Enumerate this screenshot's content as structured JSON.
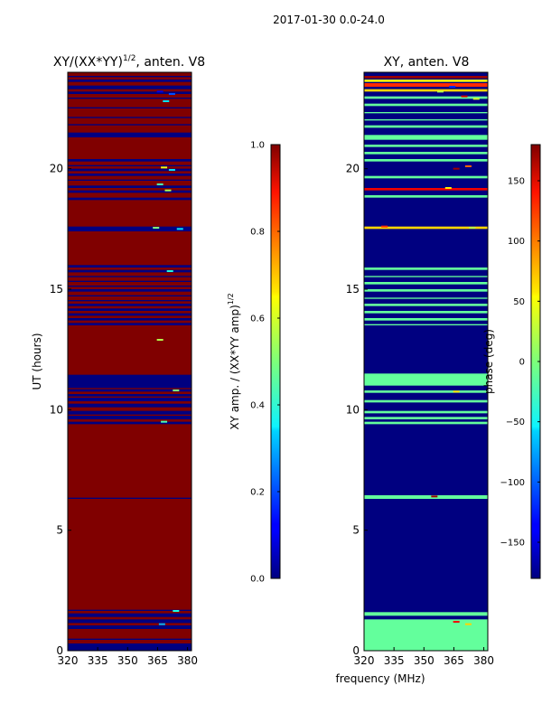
{
  "figure_title": "2017-01-30 0.0-24.0",
  "colors": {
    "dark_red": "#800000",
    "navy": "#00007f",
    "light_green": "#7dff7a",
    "cyan": "#00d4ff",
    "yellow": "#ffff00",
    "orange": "#ff8c00",
    "blue": "#0040ff"
  },
  "chart_data": [
    {
      "type": "heatmap",
      "title_main": "XY/(XX*YY)",
      "title_exp": "1/2",
      "title_tail": ", anten. V8",
      "ylabel": "UT (hours)",
      "xlabel": "",
      "xlim": [
        320,
        382
      ],
      "ylim": [
        0,
        24
      ],
      "xticks": [
        320,
        335,
        350,
        365,
        380
      ],
      "yticks": [
        0,
        5,
        10,
        15,
        20
      ],
      "background_value": 1.0,
      "bands": [
        {
          "y0": 0.0,
          "y1": 0.3,
          "v": 0.0
        },
        {
          "y0": 0.45,
          "y1": 0.5,
          "v": 0.0
        },
        {
          "y0": 0.9,
          "y1": 1.05,
          "v": 0.0
        },
        {
          "y0": 1.15,
          "y1": 1.3,
          "v": 0.0
        },
        {
          "y0": 1.4,
          "y1": 1.55,
          "v": 0.0
        },
        {
          "y0": 1.65,
          "y1": 1.7,
          "v": 0.0
        },
        {
          "y0": 6.3,
          "y1": 6.35,
          "v": 0.0
        },
        {
          "y0": 9.4,
          "y1": 9.5,
          "v": 0.0
        },
        {
          "y0": 9.6,
          "y1": 9.75,
          "v": 0.0
        },
        {
          "y0": 9.8,
          "y1": 9.95,
          "v": 0.0
        },
        {
          "y0": 10.1,
          "y1": 10.25,
          "v": 0.0
        },
        {
          "y0": 10.35,
          "y1": 10.5,
          "v": 0.0
        },
        {
          "y0": 10.55,
          "y1": 10.65,
          "v": 0.0
        },
        {
          "y0": 10.75,
          "y1": 10.85,
          "v": 0.0
        },
        {
          "y0": 10.9,
          "y1": 11.45,
          "v": 0.0
        },
        {
          "y0": 13.5,
          "y1": 13.6,
          "v": 0.0
        },
        {
          "y0": 13.7,
          "y1": 13.8,
          "v": 0.0
        },
        {
          "y0": 13.9,
          "y1": 14.0,
          "v": 0.0
        },
        {
          "y0": 14.1,
          "y1": 14.2,
          "v": 0.0
        },
        {
          "y0": 14.3,
          "y1": 14.4,
          "v": 0.0
        },
        {
          "y0": 14.5,
          "y1": 14.55,
          "v": 0.0
        },
        {
          "y0": 14.7,
          "y1": 14.75,
          "v": 0.0
        },
        {
          "y0": 14.9,
          "y1": 15.0,
          "v": 0.0
        },
        {
          "y0": 15.1,
          "y1": 15.15,
          "v": 0.0
        },
        {
          "y0": 15.3,
          "y1": 15.35,
          "v": 0.0
        },
        {
          "y0": 15.5,
          "y1": 15.55,
          "v": 0.0
        },
        {
          "y0": 15.7,
          "y1": 15.8,
          "v": 0.0
        },
        {
          "y0": 15.9,
          "y1": 16.0,
          "v": 0.0
        },
        {
          "y0": 17.4,
          "y1": 17.6,
          "v": 0.0
        },
        {
          "y0": 18.7,
          "y1": 18.8,
          "v": 0.0
        },
        {
          "y0": 19.0,
          "y1": 19.1,
          "v": 0.0
        },
        {
          "y0": 19.2,
          "y1": 19.3,
          "v": 0.0
        },
        {
          "y0": 19.5,
          "y1": 19.55,
          "v": 0.0
        },
        {
          "y0": 19.7,
          "y1": 19.8,
          "v": 0.0
        },
        {
          "y0": 19.9,
          "y1": 20.0,
          "v": 0.0
        },
        {
          "y0": 20.1,
          "y1": 20.15,
          "v": 0.0
        },
        {
          "y0": 20.3,
          "y1": 20.4,
          "v": 0.0
        },
        {
          "y0": 21.3,
          "y1": 21.5,
          "v": 0.0
        },
        {
          "y0": 21.8,
          "y1": 21.85,
          "v": 0.0
        },
        {
          "y0": 22.1,
          "y1": 22.15,
          "v": 0.0
        },
        {
          "y0": 22.5,
          "y1": 22.55,
          "v": 0.0
        },
        {
          "y0": 22.9,
          "y1": 22.95,
          "v": 0.0
        },
        {
          "y0": 23.1,
          "y1": 23.2,
          "v": 0.0
        },
        {
          "y0": 23.3,
          "y1": 23.45,
          "v": 0.0
        },
        {
          "y0": 23.6,
          "y1": 23.7,
          "v": 0.0
        },
        {
          "y0": 23.8,
          "y1": 23.85,
          "v": 0.0
        }
      ],
      "speckles": [
        {
          "x": 368,
          "y": 20.05,
          "v": 0.6
        },
        {
          "x": 372,
          "y": 19.95,
          "v": 0.35
        },
        {
          "x": 366,
          "y": 19.35,
          "v": 0.45
        },
        {
          "x": 370,
          "y": 19.1,
          "v": 0.55
        },
        {
          "x": 376,
          "y": 17.5,
          "v": 0.35
        },
        {
          "x": 364,
          "y": 17.55,
          "v": 0.5
        },
        {
          "x": 371,
          "y": 15.75,
          "v": 0.4
        },
        {
          "x": 366,
          "y": 12.9,
          "v": 0.55
        },
        {
          "x": 374,
          "y": 10.8,
          "v": 0.5
        },
        {
          "x": 368,
          "y": 9.5,
          "v": 0.45
        },
        {
          "x": 366,
          "y": 23.2,
          "v": 0.1
        },
        {
          "x": 372,
          "y": 23.1,
          "v": 0.2
        },
        {
          "x": 369,
          "y": 22.8,
          "v": 0.35
        },
        {
          "x": 374,
          "y": 1.65,
          "v": 0.4
        },
        {
          "x": 367,
          "y": 1.1,
          "v": 0.3
        }
      ],
      "colorbar": {
        "label_main": "XY amp. / (XX*YY amp)",
        "label_exp": "1/2",
        "range": [
          0.0,
          1.0
        ],
        "ticks": [
          "0.0",
          "0.2",
          "0.4",
          "0.6",
          "0.8",
          "1.0"
        ]
      }
    },
    {
      "type": "heatmap",
      "title": "XY, anten. V8",
      "xlabel": "frequency (MHz)",
      "xlim": [
        320,
        382
      ],
      "ylim": [
        0,
        24
      ],
      "xticks": [
        320,
        335,
        350,
        365,
        380
      ],
      "yticks": [
        0,
        5,
        10,
        15,
        20
      ],
      "background_value": -180,
      "bands": [
        {
          "y0": 0.0,
          "y1": 1.3,
          "v": -10
        },
        {
          "y0": 1.45,
          "y1": 1.6,
          "v": -10
        },
        {
          "y0": 6.3,
          "y1": 6.45,
          "v": -10
        },
        {
          "y0": 9.4,
          "y1": 9.5,
          "v": -10
        },
        {
          "y0": 9.6,
          "y1": 9.7,
          "v": -10
        },
        {
          "y0": 9.85,
          "y1": 9.95,
          "v": -10
        },
        {
          "y0": 10.3,
          "y1": 10.4,
          "v": -10
        },
        {
          "y0": 10.7,
          "y1": 10.8,
          "v": -10
        },
        {
          "y0": 11.0,
          "y1": 11.5,
          "v": -10
        },
        {
          "y0": 13.5,
          "y1": 13.55,
          "v": -10
        },
        {
          "y0": 13.7,
          "y1": 13.8,
          "v": -10
        },
        {
          "y0": 14.0,
          "y1": 14.1,
          "v": -10
        },
        {
          "y0": 14.3,
          "y1": 14.4,
          "v": -10
        },
        {
          "y0": 14.6,
          "y1": 14.65,
          "v": -10
        },
        {
          "y0": 14.9,
          "y1": 15.0,
          "v": -10
        },
        {
          "y0": 15.2,
          "y1": 15.3,
          "v": -10
        },
        {
          "y0": 15.5,
          "y1": 15.55,
          "v": -10
        },
        {
          "y0": 15.8,
          "y1": 15.9,
          "v": -10
        },
        {
          "y0": 17.5,
          "y1": 17.6,
          "v": 60
        },
        {
          "y0": 18.8,
          "y1": 18.9,
          "v": -10
        },
        {
          "y0": 19.1,
          "y1": 19.2,
          "v": 140
        },
        {
          "y0": 19.6,
          "y1": 19.7,
          "v": -10
        },
        {
          "y0": 20.3,
          "y1": 20.4,
          "v": -10
        },
        {
          "y0": 20.6,
          "y1": 20.7,
          "v": -10
        },
        {
          "y0": 20.9,
          "y1": 21.0,
          "v": -10
        },
        {
          "y0": 21.2,
          "y1": 21.4,
          "v": -10
        },
        {
          "y0": 21.7,
          "y1": 21.8,
          "v": -10
        },
        {
          "y0": 22.0,
          "y1": 22.05,
          "v": -10
        },
        {
          "y0": 22.3,
          "y1": 22.35,
          "v": -10
        },
        {
          "y0": 22.6,
          "y1": 22.7,
          "v": -10
        },
        {
          "y0": 22.9,
          "y1": 23.0,
          "v": -10
        },
        {
          "y0": 23.2,
          "y1": 23.3,
          "v": 60
        },
        {
          "y0": 23.4,
          "y1": 23.55,
          "v": 120
        },
        {
          "y0": 23.6,
          "y1": 23.7,
          "v": 40
        },
        {
          "y0": 23.75,
          "y1": 23.85,
          "v": 170
        }
      ],
      "speckles": [
        {
          "x": 370,
          "y": 23.0,
          "v": 150
        },
        {
          "x": 376,
          "y": 22.9,
          "v": 30
        },
        {
          "x": 364,
          "y": 23.4,
          "v": -120
        },
        {
          "x": 358,
          "y": 23.2,
          "v": 20
        },
        {
          "x": 366,
          "y": 20.0,
          "v": 170
        },
        {
          "x": 372,
          "y": 20.1,
          "v": 100
        },
        {
          "x": 362,
          "y": 19.2,
          "v": 50
        },
        {
          "x": 330,
          "y": 17.6,
          "v": 120
        },
        {
          "x": 374,
          "y": 17.55,
          "v": 20
        },
        {
          "x": 366,
          "y": 10.75,
          "v": 60
        },
        {
          "x": 355,
          "y": 6.4,
          "v": 170
        },
        {
          "x": 366,
          "y": 1.2,
          "v": 140
        },
        {
          "x": 372,
          "y": 1.1,
          "v": 60
        }
      ],
      "colorbar": {
        "label": "phase (deg)",
        "range": [
          -180,
          180
        ],
        "ticks": [
          "−150",
          "−100",
          "−50",
          "0",
          "50",
          "100",
          "150"
        ],
        "tick_values": [
          -150,
          -100,
          -50,
          0,
          50,
          100,
          150
        ]
      }
    }
  ]
}
